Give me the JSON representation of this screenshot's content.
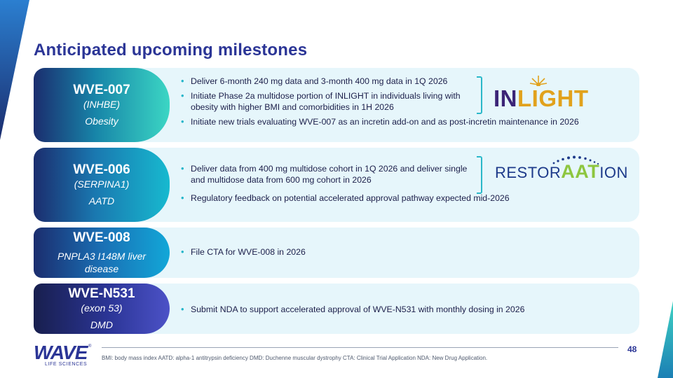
{
  "title": "Anticipated upcoming milestones",
  "accent_color": "#2b3596",
  "bullet_color": "#23b5c9",
  "rows": [
    {
      "code": "WVE-007",
      "target": "(INHBE)",
      "indication": "Obesity",
      "bullets": [
        "Deliver 6-month 240 mg data and 3-month 400 mg data in 1Q 2026",
        "Initiate Phase 2a multidose portion of INLIGHT in individuals living with obesity with higher BMI and comorbidities in 1H 2026",
        "Initiate new trials evaluating WVE-007 as an incretin add-on and as post-incretin maintenance in 2026"
      ],
      "logo": {
        "part1": "IN",
        "part2": "LIGHT"
      }
    },
    {
      "code": "WVE-006",
      "target": "(SERPINA1)",
      "indication": "AATD",
      "bullets": [
        "Deliver data from 400 mg multidose cohort in 1Q 2026 and deliver single and multidose data from 600 mg cohort in 2026",
        "Regulatory feedback on potential accelerated approval pathway expected mid-2026"
      ],
      "logo": {
        "part1": "RESTOR",
        "part2": "AAT",
        "part3": "ION"
      }
    },
    {
      "code": "WVE-008",
      "indication": "PNPLA3 I148M liver disease",
      "bullets": [
        "File CTA for WVE-008 in 2026"
      ]
    },
    {
      "code": "WVE-N531",
      "target": "(exon 53)",
      "indication": "DMD",
      "bullets": [
        "Submit NDA to support accelerated approval of WVE-N531 with monthly dosing in 2026"
      ]
    }
  ],
  "footer": {
    "page_number": "48",
    "footnote": "BMI: body mass index  AATD: alpha-1 antitrypsin deficiency  DMD: Duchenne muscular dystrophy  CTA: Clinical Trial Application  NDA: New Drug Application.",
    "company": "WAVE",
    "company_reg": "®",
    "company_sub": "LIFE SCIENCES"
  }
}
